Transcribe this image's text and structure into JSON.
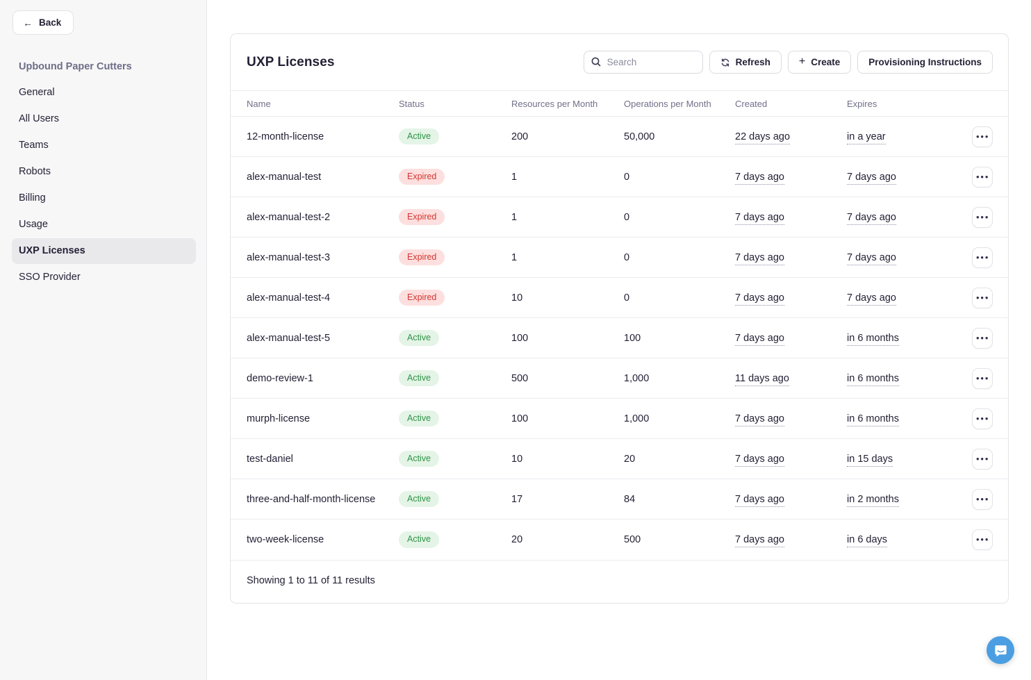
{
  "sidebar": {
    "back_label": "Back",
    "org_name": "Upbound Paper Cutters",
    "items": [
      {
        "label": "General",
        "selected": false
      },
      {
        "label": "All Users",
        "selected": false
      },
      {
        "label": "Teams",
        "selected": false
      },
      {
        "label": "Robots",
        "selected": false
      },
      {
        "label": "Billing",
        "selected": false
      },
      {
        "label": "Usage",
        "selected": false
      },
      {
        "label": "UXP Licenses",
        "selected": true
      },
      {
        "label": "SSO Provider",
        "selected": false
      }
    ]
  },
  "header": {
    "title": "UXP Licenses",
    "search_placeholder": "Search",
    "refresh_label": "Refresh",
    "create_label": "Create",
    "provisioning_label": "Provisioning Instructions"
  },
  "table": {
    "columns": [
      "Name",
      "Status",
      "Resources per Month",
      "Operations per Month",
      "Created",
      "Expires"
    ],
    "rows": [
      {
        "name": "12-month-license",
        "status": "Active",
        "resources": "200",
        "operations": "50,000",
        "created": "22 days ago",
        "expires": "in a year"
      },
      {
        "name": "alex-manual-test",
        "status": "Expired",
        "resources": "1",
        "operations": "0",
        "created": "7 days ago",
        "expires": "7 days ago"
      },
      {
        "name": "alex-manual-test-2",
        "status": "Expired",
        "resources": "1",
        "operations": "0",
        "created": "7 days ago",
        "expires": "7 days ago"
      },
      {
        "name": "alex-manual-test-3",
        "status": "Expired",
        "resources": "1",
        "operations": "0",
        "created": "7 days ago",
        "expires": "7 days ago"
      },
      {
        "name": "alex-manual-test-4",
        "status": "Expired",
        "resources": "10",
        "operations": "0",
        "created": "7 days ago",
        "expires": "7 days ago"
      },
      {
        "name": "alex-manual-test-5",
        "status": "Active",
        "resources": "100",
        "operations": "100",
        "created": "7 days ago",
        "expires": "in 6 months"
      },
      {
        "name": "demo-review-1",
        "status": "Active",
        "resources": "500",
        "operations": "1,000",
        "created": "11 days ago",
        "expires": "in 6 months"
      },
      {
        "name": "murph-license",
        "status": "Active",
        "resources": "100",
        "operations": "1,000",
        "created": "7 days ago",
        "expires": "in 6 months"
      },
      {
        "name": "test-daniel",
        "status": "Active",
        "resources": "10",
        "operations": "20",
        "created": "7 days ago",
        "expires": "in 15 days"
      },
      {
        "name": "three-and-half-month-license",
        "status": "Active",
        "resources": "17",
        "operations": "84",
        "created": "7 days ago",
        "expires": "in 2 months"
      },
      {
        "name": "two-week-license",
        "status": "Active",
        "resources": "20",
        "operations": "500",
        "created": "7 days ago",
        "expires": "in 6 days"
      }
    ],
    "footer_text": "Showing 1 to 11 of 11 results"
  },
  "icons": {
    "back": "left-arrow",
    "search": "magnifier",
    "refresh": "circular-arrows",
    "create": "plus",
    "row_menu": "ellipsis",
    "chat": "speech-bubble-smile"
  },
  "colors": {
    "sidebar_bg": "#f7f7f8",
    "selected_item_bg": "#e9e9ec",
    "text_dark": "#232135",
    "muted_label": "#70708a",
    "active_badge_bg": "#e4f4e6",
    "active_badge_text": "#2f9247",
    "expired_badge_bg": "#fcdfde",
    "expired_badge_text": "#d23732",
    "border": "#e4e4e9",
    "chat_bubble_blue": "#4b9ee1"
  }
}
